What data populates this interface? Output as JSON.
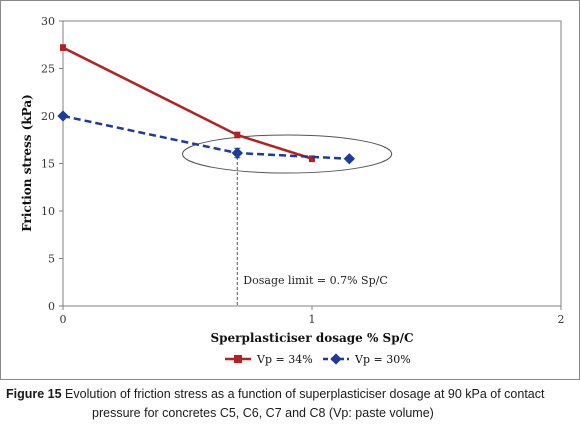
{
  "chart_data": {
    "type": "line",
    "title": "",
    "xlabel": "Sperplasticiser dosage % Sp/C",
    "ylabel": "Friction stress (kPa)",
    "xlim": [
      0,
      2
    ],
    "ylim": [
      0,
      30
    ],
    "x_ticks": [
      "0",
      "1",
      "2"
    ],
    "y_ticks": [
      "0",
      "5",
      "10",
      "15",
      "20",
      "25",
      "30"
    ],
    "grid": false,
    "legend_position": "bottom",
    "series": [
      {
        "name": "Vp = 34%",
        "color": "#b22222",
        "style": "solid",
        "marker": "square",
        "x": [
          0,
          0.7,
          1.0
        ],
        "y": [
          27.2,
          18.0,
          15.5
        ],
        "error": [
          0.3,
          0.3,
          0.3
        ]
      },
      {
        "name": "Vp = 30%",
        "color": "#1f3b99",
        "style": "dashed",
        "marker": "diamond",
        "x": [
          0,
          0.7,
          1.15
        ],
        "y": [
          20.0,
          16.1,
          15.5
        ],
        "error": [
          0.2,
          0.5,
          0.2
        ]
      }
    ],
    "annotations": [
      {
        "text": "Dosage limit = 0.7% Sp/C",
        "x": 0.7,
        "kind": "vertical-dashed-line"
      }
    ],
    "ellipse_highlight": {
      "x_center": 0.9,
      "y_center": 16.0,
      "x_radius": 0.42,
      "y_radius": 2.0
    }
  },
  "caption": {
    "label": "Figure 15",
    "line1": " Evolution of friction stress as a function of superplasticiser dosage at 90 kPa of contact",
    "line2": "pressure for concretes C5, C6, C7 and C8 (Vp: paste volume)"
  }
}
